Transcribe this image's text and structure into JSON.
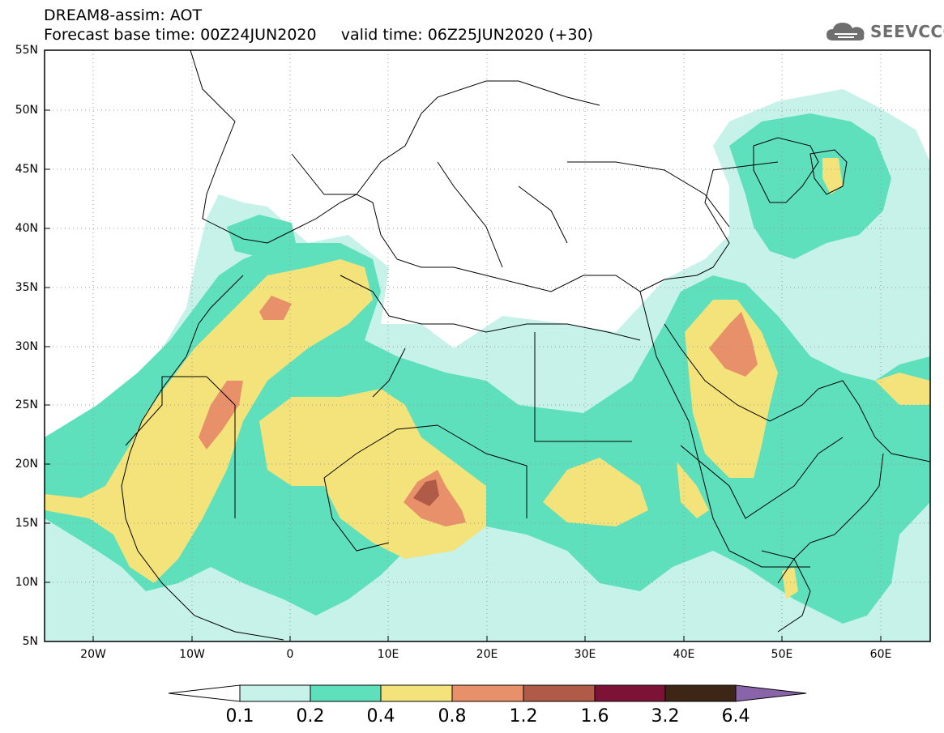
{
  "header": {
    "title_line1": "DREAM8-assim: AOT",
    "title_line2": "Forecast base time: 00Z24JUN2020     valid time: 06Z25JUN2020 (+30)"
  },
  "logo": {
    "text": "SEEVCCC",
    "icon": "cloud-icon"
  },
  "map": {
    "projection": "lat-lon",
    "lon_range": [
      -25,
      65
    ],
    "lat_range": [
      5,
      55
    ],
    "grid": "dotted",
    "lat_labels": [
      "55N",
      "50N",
      "45N",
      "40N",
      "35N",
      "30N",
      "25N",
      "20N",
      "15N",
      "10N",
      "5N"
    ],
    "lon_labels": [
      "20W",
      "10W",
      "0",
      "10E",
      "20E",
      "30E",
      "40E",
      "50E",
      "60E"
    ]
  },
  "colorbar": {
    "levels": [
      "0.1",
      "0.2",
      "0.4",
      "0.8",
      "1.2",
      "1.6",
      "3.2",
      "6.4"
    ],
    "colors": [
      "#c6f2ea",
      "#5fe0bc",
      "#f4e37a",
      "#e8906a",
      "#b05a48",
      "#7c1236",
      "#3e2616",
      "#8a64a8"
    ],
    "under_color": "#ffffff"
  },
  "colors": {
    "c1": "#c6f2ea",
    "c2": "#5fe0bc",
    "c3": "#f4e37a",
    "c4": "#e8906a",
    "c5": "#b05a48",
    "c6": "#7c1236"
  }
}
